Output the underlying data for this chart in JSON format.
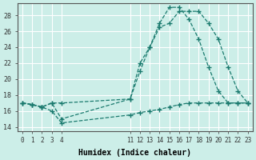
{
  "xlabel": "Humidex (Indice chaleur)",
  "bg_color": "#cceee8",
  "grid_color": "#ffffff",
  "line_color": "#1a7a6e",
  "xlim": [
    -0.5,
    23.5
  ],
  "ylim": [
    13.5,
    29.5
  ],
  "xticks": [
    0,
    1,
    2,
    3,
    4,
    11,
    12,
    13,
    14,
    15,
    16,
    17,
    18,
    19,
    20,
    21,
    22,
    23
  ],
  "yticks": [
    14,
    16,
    18,
    20,
    22,
    24,
    26,
    28
  ],
  "series": [
    {
      "x": [
        0,
        1,
        2,
        3,
        4,
        11,
        12,
        13,
        14,
        15,
        16,
        17,
        18,
        19,
        20,
        21,
        22,
        23
      ],
      "y": [
        17,
        16.8,
        16.5,
        17.0,
        17.0,
        17.5,
        21.0,
        24.0,
        27.0,
        29.0,
        29.0,
        27.5,
        25.0,
        21.5,
        18.5,
        17.0,
        17.0,
        17.0
      ]
    },
    {
      "x": [
        0,
        1,
        2,
        3,
        4,
        11,
        12,
        13,
        14,
        15,
        16,
        17,
        18,
        19,
        20,
        21,
        22,
        23
      ],
      "y": [
        17,
        16.8,
        16.5,
        16.0,
        14.5,
        15.5,
        15.8,
        16.0,
        16.2,
        16.5,
        16.8,
        17.0,
        17.0,
        17.0,
        17.0,
        17.0,
        17.0,
        17.0
      ]
    },
    {
      "x": [
        0,
        1,
        2,
        3,
        4,
        11,
        12,
        13,
        14,
        15,
        16,
        17,
        18,
        19,
        20,
        21,
        22,
        23
      ],
      "y": [
        17,
        16.8,
        16.5,
        17.0,
        15.0,
        17.5,
        22.0,
        24.0,
        26.5,
        27.0,
        28.5,
        28.5,
        28.5,
        27.0,
        25.0,
        21.5,
        18.5,
        17.0
      ]
    }
  ]
}
